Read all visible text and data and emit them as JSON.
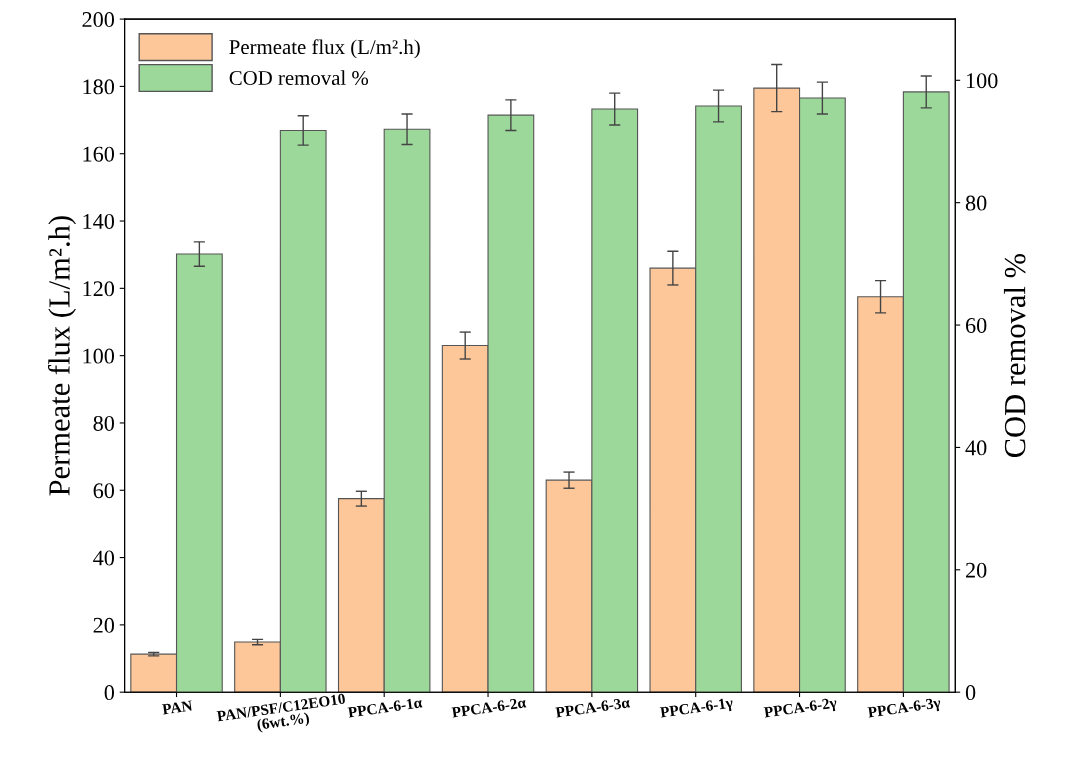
{
  "chart_data": {
    "type": "bar",
    "categories": [
      "PAN",
      "PAN/PSF/C12EO10 (6wt.%)",
      "PPCA-6-1α",
      "PPCA-6-2α",
      "PPCA-6-3α",
      "PPCA-6-1γ",
      "PPCA-6-2γ",
      "PPCA-6-3γ"
    ],
    "series": [
      {
        "name": "Permeate flux (L/m².h)",
        "color": "#fdc799",
        "values": [
          11.3,
          14.9,
          57.5,
          103,
          63,
          126,
          179.5,
          117.5
        ],
        "errors": [
          0.5,
          0.8,
          2.2,
          4,
          2.4,
          5,
          7,
          4.8
        ]
      },
      {
        "name": "COD removal %",
        "color": "#9dd89b",
        "axis": "y2",
        "values": [
          71.6,
          91.8,
          92,
          94.3,
          95.3,
          95.8,
          97.1,
          98.1
        ],
        "errors": [
          2,
          2.4,
          2.5,
          2.5,
          2.6,
          2.6,
          2.6,
          2.6
        ]
      }
    ],
    "ylabel": "Permeate flux (L/m².h)",
    "y2label": "COD removal %",
    "ylim": [
      0,
      200
    ],
    "yticks": [
      0,
      20,
      40,
      60,
      80,
      100,
      120,
      140,
      160,
      180,
      200
    ],
    "y2lim": [
      0,
      110
    ],
    "y2ticks": [
      0,
      20,
      40,
      60,
      80,
      100
    ],
    "legend": "top left",
    "grid": false
  }
}
